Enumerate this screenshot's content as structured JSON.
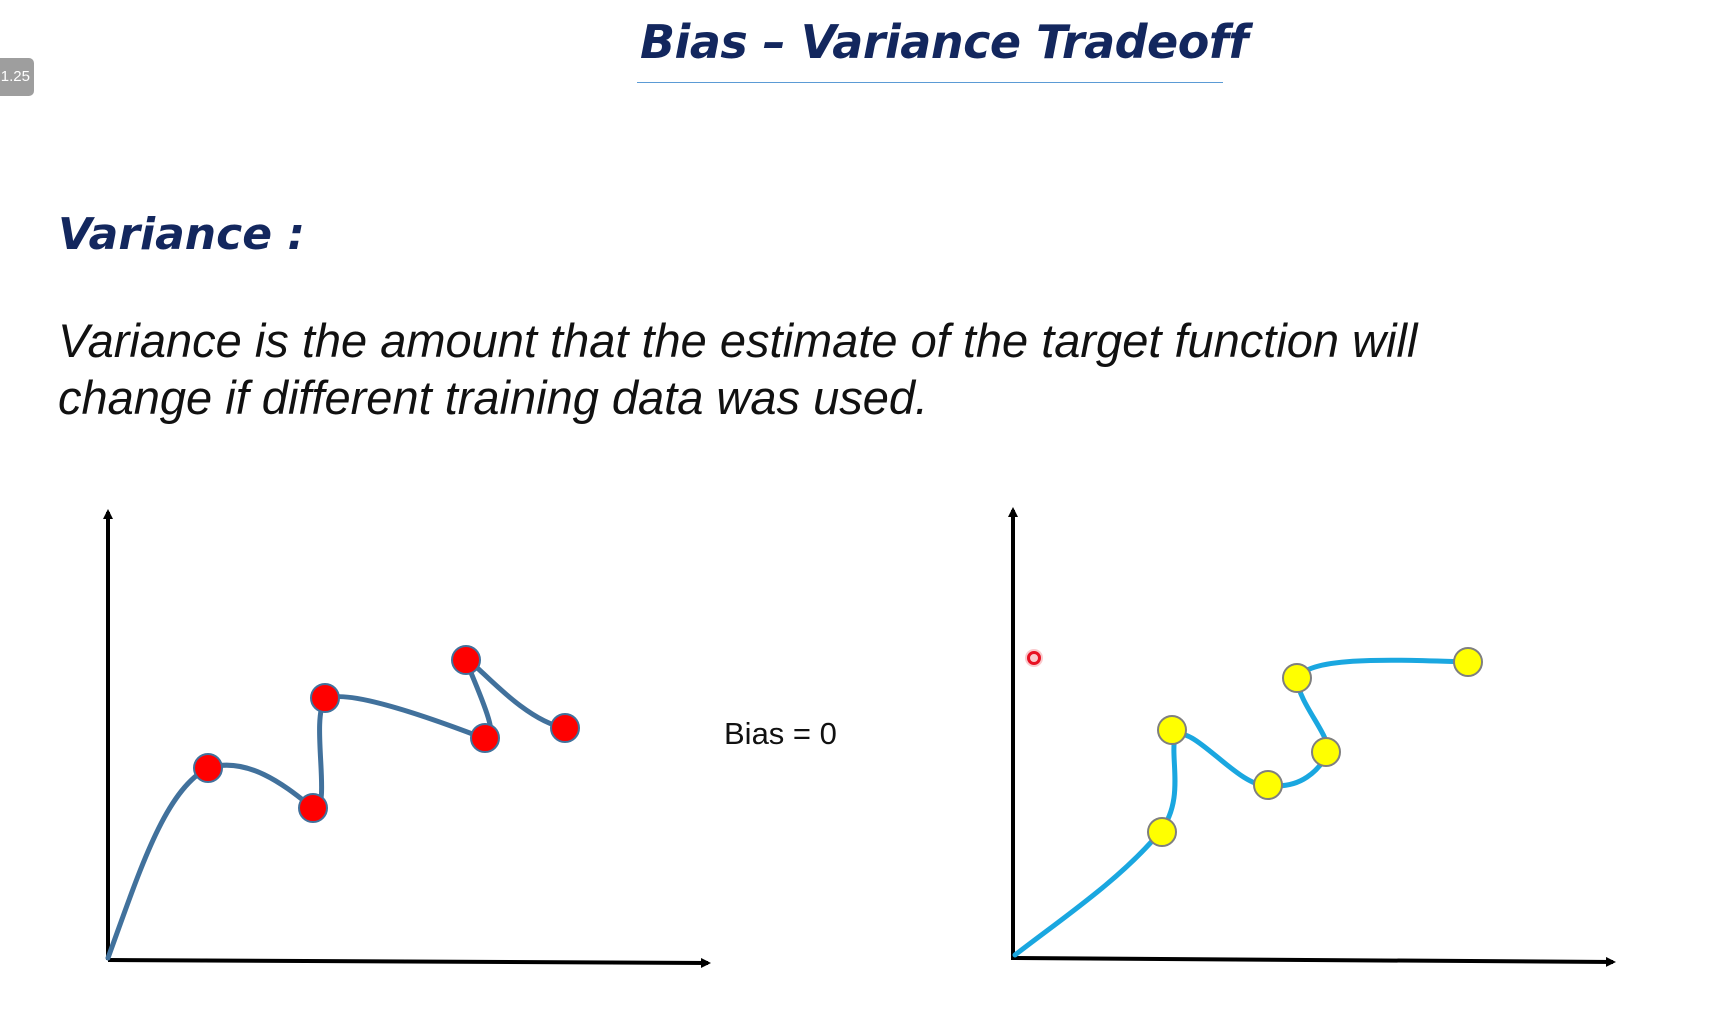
{
  "zoom_badge": "1.25",
  "slide": {
    "title": "Bias – Variance Tradeoff",
    "heading": "Variance :",
    "definition_lines": [
      "Variance is the amount that the estimate of the target function will",
      "change if different training data was used."
    ],
    "bias_label": "Bias = 0"
  },
  "colors": {
    "title": "#13275e",
    "left_curve": "#41719c",
    "left_points": "#ff0000",
    "right_curve": "#1aa7e0",
    "right_points": "#ffff00",
    "axes": "#000000",
    "cursor": "#e81123"
  },
  "plots": [
    {
      "name": "left-plot",
      "description": "overfit curve through red training points"
    },
    {
      "name": "right-plot",
      "description": "overfit curve through yellow training points"
    }
  ]
}
